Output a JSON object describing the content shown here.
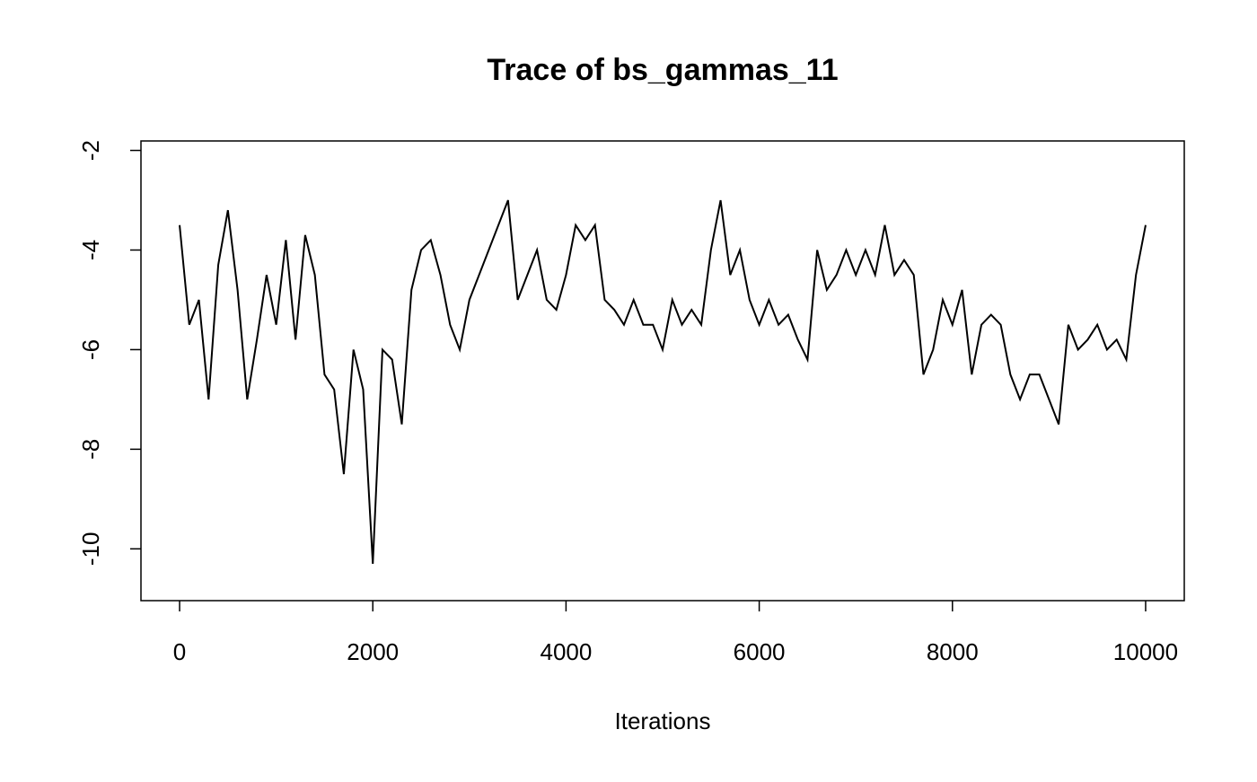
{
  "chart_data": {
    "type": "line",
    "title": "Trace of bs_gammas_11",
    "x_label": "Iterations",
    "x": [
      0,
      100,
      200,
      300,
      400,
      500,
      600,
      700,
      800,
      900,
      1000,
      1100,
      1200,
      1300,
      1400,
      1500,
      1600,
      1700,
      1800,
      1900,
      2000,
      2100,
      2200,
      2300,
      2400,
      2500,
      2600,
      2700,
      2800,
      2900,
      3000,
      3100,
      3200,
      3300,
      3400,
      3500,
      3600,
      3700,
      3800,
      3900,
      4000,
      4100,
      4200,
      4300,
      4400,
      4500,
      4600,
      4700,
      4800,
      4900,
      5000,
      5100,
      5200,
      5300,
      5400,
      5500,
      5600,
      5700,
      5800,
      5900,
      6000,
      6100,
      6200,
      6300,
      6400,
      6500,
      6600,
      6700,
      6800,
      6900,
      7000,
      7100,
      7200,
      7300,
      7400,
      7500,
      7600,
      7700,
      7800,
      7900,
      8000,
      8100,
      8200,
      8300,
      8400,
      8500,
      8600,
      8700,
      8800,
      8900,
      9000,
      9100,
      9200,
      9300,
      9400,
      9500,
      9600,
      9700,
      9800,
      9900,
      10000
    ],
    "series": [
      {
        "name": "bs_gammas_11",
        "color": "#000000",
        "values": [
          -3.5,
          -5.5,
          -5.0,
          -7.0,
          -4.3,
          -3.2,
          -4.8,
          -7.0,
          -5.8,
          -4.5,
          -5.5,
          -3.8,
          -5.8,
          -3.7,
          -4.5,
          -6.5,
          -6.8,
          -8.5,
          -6.0,
          -6.8,
          -10.3,
          -6.0,
          -6.2,
          -7.5,
          -4.8,
          -4.0,
          -3.8,
          -4.5,
          -5.5,
          -6.0,
          -5.0,
          -4.5,
          -4.0,
          -3.5,
          -3.0,
          -5.0,
          -4.5,
          -4.0,
          -5.0,
          -5.2,
          -4.5,
          -3.5,
          -3.8,
          -3.5,
          -5.0,
          -5.2,
          -5.5,
          -5.0,
          -5.5,
          -5.5,
          -6.0,
          -5.0,
          -5.5,
          -5.2,
          -5.5,
          -4.0,
          -3.0,
          -4.5,
          -4.0,
          -5.0,
          -5.5,
          -5.0,
          -5.5,
          -5.3,
          -5.8,
          -6.2,
          -4.0,
          -4.8,
          -4.5,
          -4.0,
          -4.5,
          -4.0,
          -4.5,
          -3.5,
          -4.5,
          -4.2,
          -4.5,
          -6.5,
          -6.0,
          -5.0,
          -5.5,
          -4.8,
          -6.5,
          -5.5,
          -5.3,
          -5.5,
          -6.5,
          -7.0,
          -6.5,
          -6.5,
          -7.0,
          -7.5,
          -5.5,
          -6.0,
          -5.8,
          -5.5,
          -6.0,
          -5.8,
          -6.2,
          -4.5,
          -3.5
        ]
      }
    ],
    "xlim": [
      -400,
      10400
    ],
    "ylim": [
      -11.04,
      -1.81
    ],
    "xticks": [
      0,
      2000,
      4000,
      6000,
      8000,
      10000
    ],
    "yticks": [
      -10,
      -8,
      -6,
      -4,
      -2
    ]
  }
}
